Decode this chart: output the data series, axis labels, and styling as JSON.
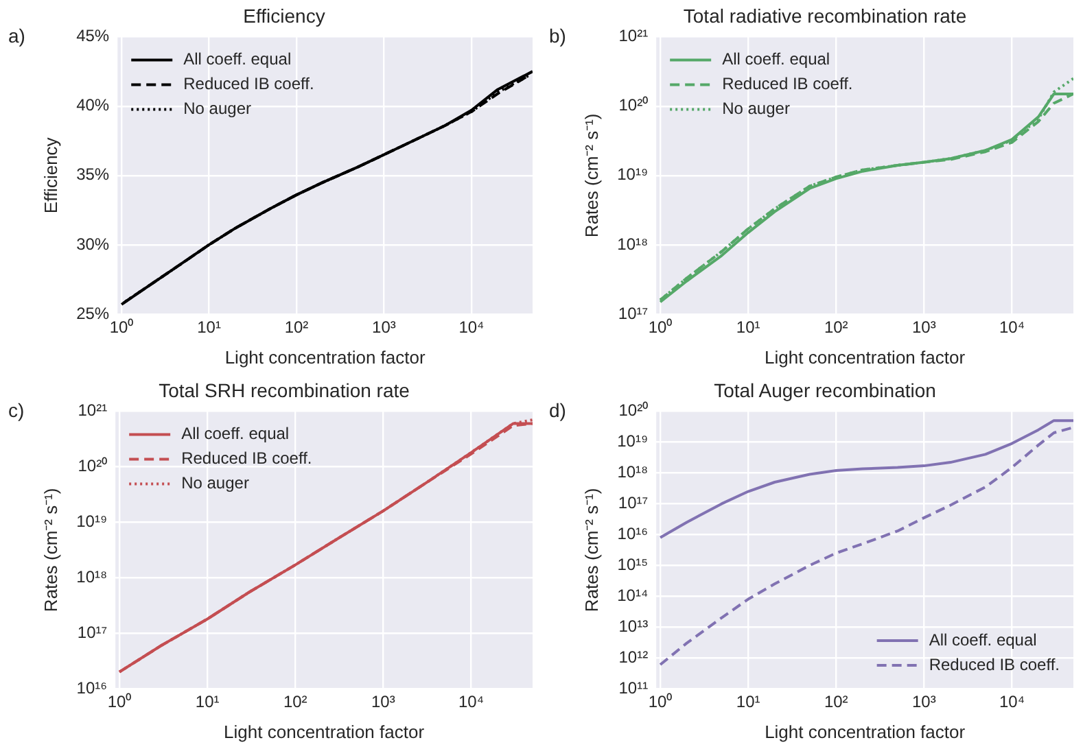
{
  "chart_data": [
    {
      "type": "line",
      "title": "Efficiency",
      "xlabel": "Light concentration factor",
      "ylabel": "Efficiency",
      "annotations": [
        "a)"
      ],
      "log": "x",
      "grid": true,
      "legend": "top left",
      "marker": "none",
      "x": [
        1,
        2,
        5,
        10,
        20,
        50,
        100,
        200,
        500,
        1000,
        2000,
        5000,
        10000,
        20000,
        50000
      ],
      "xlim": [
        0.9,
        50000
      ],
      "xticks": [
        {
          "value": 1,
          "label": "10⁰"
        },
        {
          "value": 10,
          "label": "10¹"
        },
        {
          "value": 100,
          "label": "10²"
        },
        {
          "value": 1000,
          "label": "10³"
        },
        {
          "value": 10000,
          "label": "10⁴"
        }
      ],
      "ylim": [
        25,
        45
      ],
      "yticks": [
        {
          "value": 25,
          "label": "25%"
        },
        {
          "value": 30,
          "label": "30%"
        },
        {
          "value": 35,
          "label": "35%"
        },
        {
          "value": 40,
          "label": "40%"
        },
        {
          "value": 45,
          "label": "45%"
        }
      ],
      "series": [
        {
          "name": "All coeff. equal",
          "color": "#000000",
          "line_style": "solid",
          "values": [
            25.7,
            27.0,
            28.7,
            30.0,
            31.2,
            32.6,
            33.6,
            34.5,
            35.6,
            36.5,
            37.4,
            38.6,
            39.7,
            41.2,
            42.5
          ]
        },
        {
          "name": "Reduced IB coeff.",
          "color": "#000000",
          "line_style": "dashed",
          "x": [
            1.05,
            2,
            5,
            10,
            20,
            50,
            100,
            200,
            500,
            1000,
            2000,
            5000,
            10000,
            20000,
            45000
          ],
          "values": [
            25.8,
            27.0,
            28.7,
            30.0,
            31.2,
            32.6,
            33.6,
            34.5,
            35.6,
            36.5,
            37.4,
            38.6,
            39.6,
            40.9,
            42.2
          ]
        },
        {
          "name": "No auger",
          "color": "#000000",
          "line_style": "dotted",
          "x": [
            1.1,
            2,
            5,
            10,
            20,
            50,
            100,
            200,
            500,
            1000,
            2000,
            5000,
            10000,
            20000,
            48000
          ],
          "values": [
            25.9,
            27.0,
            28.7,
            30.0,
            31.2,
            32.6,
            33.6,
            34.5,
            35.6,
            36.5,
            37.4,
            38.6,
            39.6,
            41.0,
            42.3
          ]
        }
      ]
    },
    {
      "type": "line",
      "title": "Total radiative recombination rate",
      "xlabel": "Light concentration factor",
      "ylabel": "Rates (cm⁻² s⁻¹)",
      "annotations": [
        "b)"
      ],
      "log": "xy",
      "grid": true,
      "legend": "top left",
      "marker": "none",
      "x": [
        1,
        2,
        5,
        10,
        20,
        50,
        100,
        200,
        500,
        1000,
        2000,
        5000,
        10000,
        20000,
        30000,
        50000
      ],
      "xlim": [
        0.9,
        50000
      ],
      "xticks": [
        {
          "value": 1,
          "label": "10⁰"
        },
        {
          "value": 10,
          "label": "10¹"
        },
        {
          "value": 100,
          "label": "10²"
        },
        {
          "value": 1000,
          "label": "10³"
        },
        {
          "value": 10000,
          "label": "10⁴"
        }
      ],
      "ylim": [
        1e+17,
        1e+21
      ],
      "yticks": [
        {
          "value": 1e+17,
          "label": "10¹⁷"
        },
        {
          "value": 1e+18,
          "label": "10¹⁸"
        },
        {
          "value": 1e+19,
          "label": "10¹⁹"
        },
        {
          "value": 1e+20,
          "label": "10²⁰"
        },
        {
          "value": 1e+21,
          "label": "10²¹"
        }
      ],
      "series": [
        {
          "name": "All coeff. equal",
          "color": "#55a868",
          "line_style": "solid",
          "values": [
            1.5e+17,
            3e+17,
            7e+17,
            1.5e+18,
            3e+18,
            6.5e+18,
            9e+18,
            1.15e+19,
            1.4e+19,
            1.55e+19,
            1.75e+19,
            2.3e+19,
            3.3e+19,
            7e+19,
            1.5e+20,
            1.5e+20
          ]
        },
        {
          "name": "Reduced IB coeff.",
          "color": "#55a868",
          "line_style": "dashed",
          "values": [
            1.6e+17,
            3.3e+17,
            8e+17,
            1.7e+18,
            3.3e+18,
            7e+18,
            9.5e+18,
            1.2e+19,
            1.4e+19,
            1.55e+19,
            1.7e+19,
            2.2e+19,
            3e+19,
            6e+19,
            1.1e+20,
            1.5e+20
          ]
        },
        {
          "name": "No auger",
          "color": "#55a868",
          "line_style": "dotted",
          "values": [
            1.6e+17,
            3.3e+17,
            8e+17,
            1.7e+18,
            3.3e+18,
            7e+18,
            9.5e+18,
            1.2e+19,
            1.4e+19,
            1.55e+19,
            1.75e+19,
            2.3e+19,
            3.2e+19,
            6.5e+19,
            1.6e+20,
            2.5e+20
          ]
        }
      ]
    },
    {
      "type": "line",
      "title": "Total SRH recombination rate",
      "xlabel": "Light concentration factor",
      "ylabel": "Rates (cm⁻² s⁻¹)",
      "annotations": [
        "c)"
      ],
      "log": "xy",
      "grid": true,
      "legend": "top left",
      "marker": "none",
      "x": [
        1,
        3,
        10,
        30,
        100,
        300,
        1000,
        3000,
        10000,
        30000,
        50000
      ],
      "xlim": [
        0.9,
        50000
      ],
      "xticks": [
        {
          "value": 1,
          "label": "10⁰"
        },
        {
          "value": 10,
          "label": "10¹"
        },
        {
          "value": 100,
          "label": "10²"
        },
        {
          "value": 1000,
          "label": "10³"
        },
        {
          "value": 10000,
          "label": "10⁴"
        }
      ],
      "ylim": [
        1e+16,
        1e+21
      ],
      "yticks": [
        {
          "value": 1e+16,
          "label": "10¹⁶"
        },
        {
          "value": 1e+17,
          "label": "10¹⁷"
        },
        {
          "value": 1e+18,
          "label": "10¹⁸"
        },
        {
          "value": 1e+19,
          "label": "10¹⁹"
        },
        {
          "value": 1e+20,
          "label": "10²⁰"
        },
        {
          "value": 1e+21,
          "label": "10²¹"
        }
      ],
      "series": [
        {
          "name": "All coeff. equal",
          "color": "#c44e52",
          "line_style": "solid",
          "values": [
            2e+16,
            6e+16,
            1.8e+17,
            5.5e+17,
            1.7e+18,
            5e+18,
            1.6e+19,
            5e+19,
            1.8e+20,
            6e+20,
            6e+20
          ]
        },
        {
          "name": "Reduced IB coeff.",
          "color": "#c44e52",
          "line_style": "dashed",
          "values": [
            2e+16,
            6e+16,
            1.8e+17,
            5.5e+17,
            1.7e+18,
            5e+18,
            1.6e+19,
            5e+19,
            1.7e+20,
            5.5e+20,
            6e+20
          ]
        },
        {
          "name": "No auger",
          "color": "#c44e52",
          "line_style": "dotted",
          "values": [
            2e+16,
            6e+16,
            1.8e+17,
            5.5e+17,
            1.7e+18,
            5e+18,
            1.6e+19,
            5e+19,
            1.8e+20,
            6e+20,
            7e+20
          ]
        }
      ]
    },
    {
      "type": "line",
      "title": "Total Auger recombination",
      "xlabel": "Light concentration factor",
      "ylabel": "Rates (cm⁻² s⁻¹)",
      "annotations": [
        "d)"
      ],
      "log": "xy",
      "grid": true,
      "legend": "bottom right",
      "marker": "none",
      "x": [
        1,
        2,
        5,
        10,
        20,
        50,
        100,
        200,
        500,
        1000,
        2000,
        5000,
        10000,
        20000,
        30000,
        50000
      ],
      "xlim": [
        0.9,
        50000
      ],
      "xticks": [
        {
          "value": 1,
          "label": "10⁰"
        },
        {
          "value": 10,
          "label": "10¹"
        },
        {
          "value": 100,
          "label": "10²"
        },
        {
          "value": 1000,
          "label": "10³"
        },
        {
          "value": 10000,
          "label": "10⁴"
        }
      ],
      "ylim": [
        100000000000.0,
        1e+20
      ],
      "yticks": [
        {
          "value": 100000000000.0,
          "label": "10¹¹"
        },
        {
          "value": 1000000000000.0,
          "label": "10¹²"
        },
        {
          "value": 10000000000000.0,
          "label": "10¹³"
        },
        {
          "value": 100000000000000.0,
          "label": "10¹⁴"
        },
        {
          "value": 1000000000000000.0,
          "label": "10¹⁵"
        },
        {
          "value": 1e+16,
          "label": "10¹⁶"
        },
        {
          "value": 1e+17,
          "label": "10¹⁷"
        },
        {
          "value": 1e+18,
          "label": "10¹⁸"
        },
        {
          "value": 1e+19,
          "label": "10¹⁹"
        },
        {
          "value": 1e+20,
          "label": "10²⁰"
        }
      ],
      "series": [
        {
          "name": "All coeff. equal",
          "color": "#8172b2",
          "line_style": "solid",
          "values": [
            8000000000000000.0,
            2.5e+16,
            1e+17,
            2.5e+17,
            5e+17,
            9e+17,
            1.2e+18,
            1.35e+18,
            1.5e+18,
            1.7e+18,
            2.2e+18,
            4e+18,
            9e+18,
            2.5e+19,
            5e+19,
            5e+19
          ]
        },
        {
          "name": "Reduced IB coeff.",
          "color": "#8172b2",
          "line_style": "dashed",
          "values": [
            600000000000.0,
            3000000000000.0,
            20000000000000.0,
            80000000000000.0,
            250000000000000.0,
            1000000000000000.0,
            2500000000000000.0,
            5000000000000000.0,
            1.3e+16,
            3.5e+16,
            9e+16,
            3.5e+17,
            1.5e+18,
            8e+18,
            2e+19,
            3e+19
          ]
        }
      ]
    }
  ]
}
